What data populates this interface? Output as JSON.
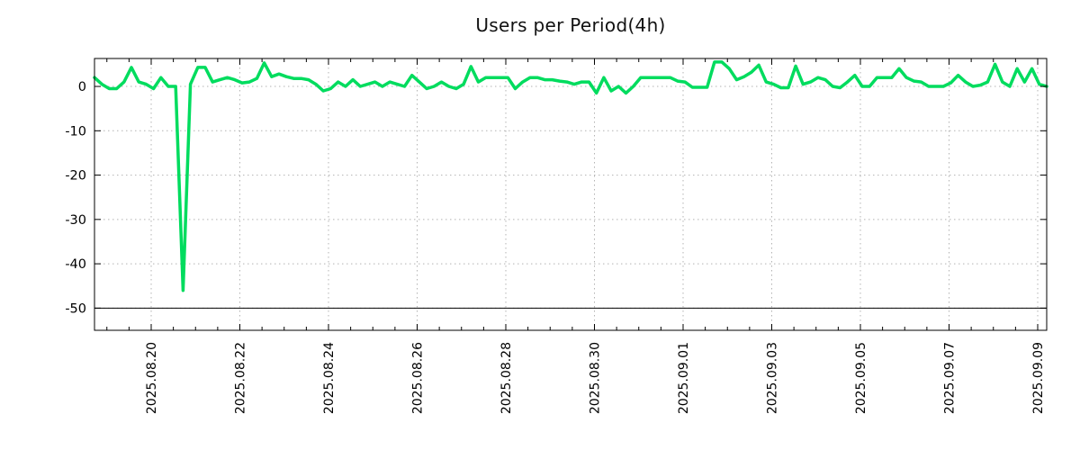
{
  "title": "Users per Period(4h)",
  "colors": {
    "line": "#00dc5e",
    "grid": "#b3b3b3",
    "axis": "#000000",
    "background": "#ffffff",
    "text": "#000000"
  },
  "chart_data": {
    "type": "line",
    "title": "Users per Period(4h)",
    "sample_period": "4h",
    "xlabel": "",
    "ylabel": "",
    "grid": true,
    "legend_position": "none",
    "x_tick_step": "2 days",
    "x_tick_labels": [
      "2025.08.20",
      "2025.08.22",
      "2025.08.24",
      "2025.08.26",
      "2025.08.28",
      "2025.08.30",
      "2025.09.01",
      "2025.09.03",
      "2025.09.05",
      "2025.09.07",
      "2025.09.09"
    ],
    "y_ticks": [
      0,
      -10,
      -20,
      -30,
      -40,
      -50
    ],
    "ylim": [
      -55,
      6.3
    ],
    "reference_line_y": -50,
    "min_value": -46,
    "min_value_near_label": "2025.08.20",
    "values": [
      2,
      0.5,
      -0.5,
      -0.5,
      1,
      4.3,
      1,
      0.5,
      -0.5,
      2,
      0,
      0,
      -46,
      0.5,
      4.3,
      4.3,
      1,
      1.5,
      2,
      1.5,
      0.8,
      1,
      1.8,
      5.3,
      2.2,
      2.8,
      2.2,
      1.8,
      1.8,
      1.5,
      0.5,
      -1,
      -0.5,
      1,
      0,
      1.5,
      0,
      0.5,
      1,
      0,
      1,
      0.5,
      0,
      2.5,
      1,
      -0.5,
      0,
      1,
      0,
      -0.5,
      0.5,
      4.5,
      1,
      2,
      2,
      2,
      2,
      -0.5,
      1,
      2,
      2,
      1.5,
      1.5,
      1.2,
      1,
      0.5,
      1,
      1,
      -1.5,
      2,
      -1,
      0,
      -1.5,
      0,
      2,
      2,
      2,
      2,
      2,
      1.2,
      1,
      -0.2,
      -0.2,
      -0.2,
      5.5,
      5.5,
      4,
      1.5,
      2.2,
      3.2,
      4.8,
      1,
      0.5,
      -0.3,
      -0.3,
      4.6,
      0.5,
      1,
      2,
      1.5,
      0,
      -0.3,
      1,
      2.5,
      0,
      0,
      2,
      2,
      2,
      4,
      2,
      1.2,
      1,
      0,
      0,
      0,
      0.8,
      2.5,
      1,
      0,
      0.3,
      1,
      5,
      1,
      0,
      4,
      1,
      4,
      0.5,
      0
    ]
  }
}
